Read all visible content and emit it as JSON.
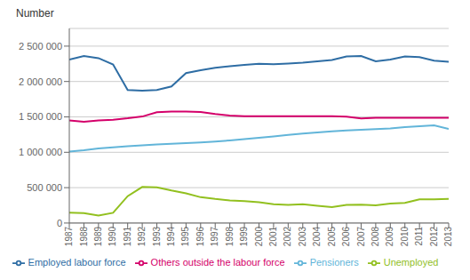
{
  "chart_data": {
    "type": "line",
    "y_label": "Number",
    "x": [
      1987,
      1988,
      1989,
      1990,
      1991,
      1992,
      1993,
      1994,
      1995,
      1996,
      1997,
      1998,
      1999,
      2000,
      2001,
      2002,
      2003,
      2004,
      2005,
      2006,
      2007,
      2008,
      2009,
      2010,
      2011,
      2012,
      2013
    ],
    "series": [
      {
        "name": "Employed labour force",
        "color": "#2e6da4",
        "values": [
          2310000,
          2360000,
          2330000,
          2240000,
          1880000,
          1870000,
          1880000,
          1930000,
          2120000,
          2160000,
          2195000,
          2215000,
          2235000,
          2250000,
          2245000,
          2255000,
          2265000,
          2285000,
          2305000,
          2355000,
          2360000,
          2285000,
          2310000,
          2355000,
          2345000,
          2295000,
          2280000
        ]
      },
      {
        "name": "Others outside the labour force",
        "color": "#d4006a",
        "values": [
          1450000,
          1430000,
          1450000,
          1460000,
          1480000,
          1505000,
          1565000,
          1575000,
          1575000,
          1570000,
          1540000,
          1520000,
          1510000,
          1510000,
          1510000,
          1510000,
          1510000,
          1508000,
          1508000,
          1503000,
          1478000,
          1488000,
          1488000,
          1488000,
          1488000,
          1488000,
          1488000
        ]
      },
      {
        "name": "Pensioners",
        "color": "#62b5d9",
        "values": [
          1010000,
          1030000,
          1055000,
          1070000,
          1085000,
          1098000,
          1110000,
          1120000,
          1130000,
          1140000,
          1152000,
          1168000,
          1185000,
          1205000,
          1225000,
          1245000,
          1265000,
          1280000,
          1295000,
          1308000,
          1318000,
          1328000,
          1338000,
          1355000,
          1368000,
          1380000,
          1330000
        ]
      },
      {
        "name": "Unemployed",
        "color": "#92c01f",
        "values": [
          145000,
          140000,
          105000,
          145000,
          380000,
          510000,
          505000,
          460000,
          420000,
          365000,
          340000,
          320000,
          310000,
          295000,
          265000,
          255000,
          265000,
          245000,
          225000,
          255000,
          260000,
          250000,
          275000,
          285000,
          335000,
          335000,
          340000
        ]
      }
    ],
    "xlim": [
      1987,
      2013
    ],
    "xticks": [
      1987,
      1988,
      1989,
      1990,
      1991,
      1992,
      1993,
      1994,
      1995,
      1996,
      1997,
      1998,
      1999,
      2000,
      2001,
      2002,
      2003,
      2004,
      2005,
      2006,
      2007,
      2008,
      2009,
      2010,
      2011,
      2012,
      2013
    ],
    "ylim": [
      0,
      2750000
    ],
    "yticks": [
      0,
      {
        "value": 500000,
        "label": "500 000"
      },
      {
        "value": 1000000,
        "label": "1 000 000"
      },
      {
        "value": 1500000,
        "label": "1 500 000"
      },
      {
        "value": 2000000,
        "label": "2 000 000"
      },
      {
        "value": 2500000,
        "label": "2 500 000"
      }
    ],
    "grid": true,
    "legend": "bottom"
  }
}
